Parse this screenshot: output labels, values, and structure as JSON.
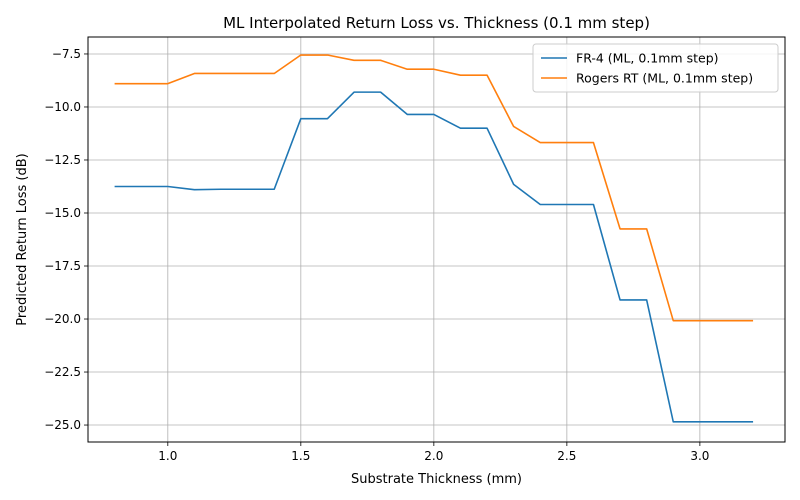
{
  "chart_data": {
    "type": "line",
    "title": "ML Interpolated Return Loss vs. Thickness (0.1 mm step)",
    "xlabel": "Substrate Thickness (mm)",
    "ylabel": "Predicted Return Loss (dB)",
    "xlim": [
      0.7,
      3.32
    ],
    "ylim": [
      -25.8,
      -6.7
    ],
    "xticks": [
      1.0,
      1.5,
      2.0,
      2.5,
      3.0
    ],
    "xtick_labels": [
      "1.0",
      "1.5",
      "2.0",
      "2.5",
      "3.0"
    ],
    "yticks": [
      -7.5,
      -10.0,
      -12.5,
      -15.0,
      -17.5,
      -20.0,
      -22.5,
      -25.0
    ],
    "ytick_labels": [
      "−7.5",
      "−10.0",
      "−12.5",
      "−15.0",
      "−17.5",
      "−20.0",
      "−22.5",
      "−25.0"
    ],
    "grid": true,
    "legend": "top-right",
    "x": [
      0.8,
      0.9,
      1.0,
      1.1,
      1.2,
      1.3,
      1.4,
      1.5,
      1.6,
      1.7,
      1.8,
      1.9,
      2.0,
      2.1,
      2.2,
      2.3,
      2.4,
      2.5,
      2.6,
      2.7,
      2.8,
      2.9,
      3.0,
      3.1,
      3.2
    ],
    "series": [
      {
        "name": "FR-4 (ML, 0.1mm step)",
        "color": "#1f77b4",
        "values": [
          -13.75,
          -13.75,
          -13.75,
          -13.9,
          -13.88,
          -13.88,
          -13.88,
          -10.55,
          -10.55,
          -9.3,
          -9.3,
          -10.35,
          -10.35,
          -11.0,
          -11.0,
          -13.65,
          -14.6,
          -14.6,
          -14.6,
          -19.1,
          -19.1,
          -24.85,
          -24.85,
          -24.85,
          -24.85
        ]
      },
      {
        "name": "Rogers RT (ML, 0.1mm step)",
        "color": "#ff7f0e",
        "values": [
          -8.9,
          -8.9,
          -8.9,
          -8.42,
          -8.42,
          -8.42,
          -8.42,
          -7.55,
          -7.55,
          -7.8,
          -7.8,
          -8.22,
          -8.22,
          -8.5,
          -8.5,
          -10.92,
          -11.68,
          -11.68,
          -11.68,
          -15.75,
          -15.75,
          -20.08,
          -20.08,
          -20.08,
          -20.08
        ]
      }
    ]
  }
}
